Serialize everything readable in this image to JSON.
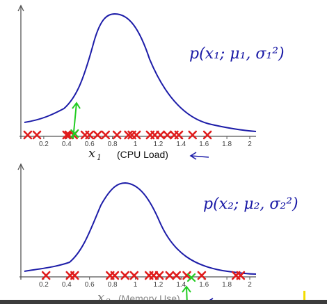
{
  "chart_data": [
    {
      "type": "scatter",
      "xlim": [
        0,
        2
      ],
      "x_ticks": [
        "0.2",
        "0.4",
        "0.6",
        "0.8",
        "1",
        "1.2",
        "1.4",
        "1.6",
        "1.8",
        "2"
      ],
      "xlabel_var": "x",
      "xlabel_sub": "1",
      "xlabel_text": "(CPU Load)",
      "annotation": "p(x₁; μ₁, σ₁²)",
      "points_x": [
        0.06,
        0.14,
        0.4,
        0.42,
        0.46,
        0.56,
        0.6,
        0.67,
        0.74,
        0.84,
        0.94,
        0.97,
        1.01,
        1.13,
        1.17,
        1.22,
        1.28,
        1.34,
        1.38,
        1.5,
        1.63
      ],
      "anomaly_x": 0.47,
      "curve": "gaussian, mean ≈ 0.8"
    },
    {
      "type": "scatter",
      "xlim": [
        0,
        2
      ],
      "x_ticks": [
        "0.2",
        "0.4",
        "0.6",
        "0.8",
        "1",
        "1.2",
        "1.4",
        "1.6",
        "1.8",
        "2"
      ],
      "xlabel_var": "x",
      "xlabel_sub": "2",
      "xlabel_text": "(Memory Use)",
      "annotation": "p(x₂; μ₂, σ₂²)",
      "points_x": [
        0.22,
        0.43,
        0.47,
        0.78,
        0.82,
        0.91,
        0.99,
        1.12,
        1.16,
        1.21,
        1.3,
        1.36,
        1.45,
        1.58,
        1.88,
        1.92
      ],
      "anomaly_x": 1.49,
      "curve": "gaussian, mean ≈ 0.95"
    }
  ],
  "colors": {
    "curve": "#1c1ca8",
    "points": "#e01c1c",
    "anomaly": "#22cc22",
    "axis": "#555555",
    "bottom_bar": "#3c3c3c",
    "cursor": "#f2dc00"
  }
}
